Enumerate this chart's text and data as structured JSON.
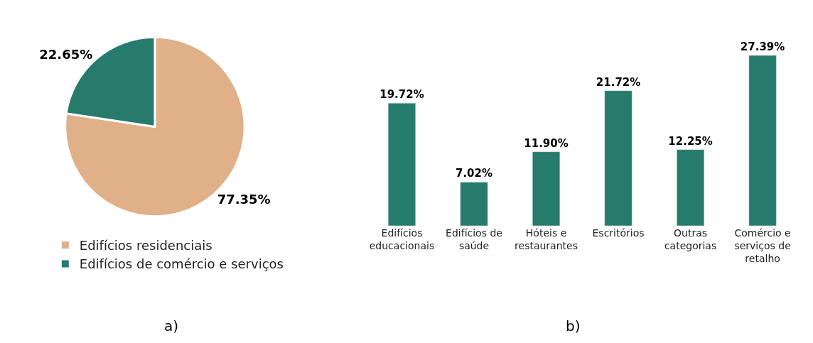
{
  "chart_data": [
    {
      "type": "pie",
      "categories": [
        "Edifícios residenciais",
        "Edifícios de comércio e serviços"
      ],
      "values": [
        77.35,
        22.65
      ],
      "colors": [
        "#e0b088",
        "#267b6c"
      ],
      "value_labels": [
        "77.35%",
        "22.65%"
      ],
      "legend": "bottom",
      "annotations": [
        "a)"
      ]
    },
    {
      "type": "bar",
      "categories": [
        "Edifícios educacionais",
        "Edifícios de saúde",
        "Hóteis e restaurantes",
        "Escritórios",
        "Outras categorias",
        "Comércio e serviços de retalho"
      ],
      "values": [
        19.72,
        7.02,
        11.9,
        21.72,
        12.25,
        27.39
      ],
      "value_labels": [
        "19.72%",
        "7.02%",
        "11.90%",
        "21.72%",
        "12.25%",
        "27.39%"
      ],
      "color": "#267b6c",
      "annotations": [
        "b)"
      ]
    }
  ]
}
